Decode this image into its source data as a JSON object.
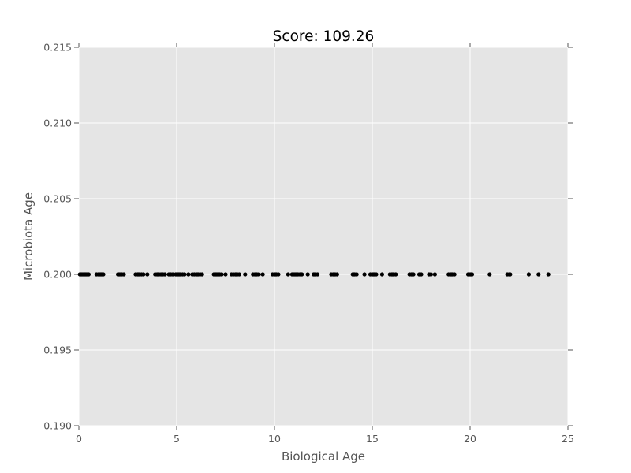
{
  "chart_data": {
    "type": "scatter",
    "title": "Score: 109.26",
    "xlabel": "Biological Age",
    "ylabel": "Microbiota Age",
    "xlim": [
      0,
      25
    ],
    "ylim": [
      0.19,
      0.215
    ],
    "xticks": [
      0,
      5,
      10,
      15,
      20,
      25
    ],
    "xtick_labels": [
      "0",
      "5",
      "10",
      "15",
      "20",
      "25"
    ],
    "yticks": [
      0.19,
      0.195,
      0.2,
      0.205,
      0.21,
      0.215
    ],
    "ytick_labels": [
      "0.190",
      "0.195",
      "0.200",
      "0.205",
      "0.210",
      "0.215"
    ],
    "grid": true,
    "style": {
      "plot_background": "#e5e5e5",
      "grid_color": "#ffffff",
      "marker_color": "#000000",
      "text_color": "#555555",
      "title_color": "#000000"
    },
    "series": [
      {
        "x": [
          0.05,
          0.1,
          0.15,
          0.2,
          0.25,
          0.3,
          0.35,
          0.4,
          0.45,
          0.5,
          0.9,
          1.0,
          1.05,
          1.1,
          1.15,
          1.2,
          1.25,
          2.0,
          2.05,
          2.1,
          2.2,
          2.3,
          2.9,
          3.0,
          3.05,
          3.1,
          3.2,
          3.3,
          3.5,
          3.9,
          4.0,
          4.05,
          4.1,
          4.2,
          4.3,
          4.4,
          4.6,
          4.7,
          4.8,
          4.95,
          5.0,
          5.05,
          5.1,
          5.15,
          5.2,
          5.3,
          5.4,
          5.6,
          5.8,
          5.9,
          6.0,
          6.05,
          6.1,
          6.2,
          6.3,
          6.9,
          7.0,
          7.05,
          7.1,
          7.15,
          7.2,
          7.3,
          7.5,
          7.8,
          7.9,
          8.0,
          8.05,
          8.1,
          8.2,
          8.5,
          8.9,
          9.0,
          9.05,
          9.1,
          9.2,
          9.4,
          9.9,
          10.0,
          10.05,
          10.1,
          10.2,
          10.7,
          10.9,
          11.0,
          11.05,
          11.1,
          11.15,
          11.2,
          11.3,
          11.4,
          11.7,
          12.0,
          12.05,
          12.1,
          12.2,
          12.9,
          13.0,
          13.05,
          13.1,
          13.2,
          14.0,
          14.05,
          14.1,
          14.2,
          14.6,
          14.9,
          15.0,
          15.05,
          15.1,
          15.2,
          15.5,
          15.9,
          16.0,
          16.05,
          16.1,
          16.2,
          16.9,
          17.0,
          17.05,
          17.1,
          17.4,
          17.5,
          17.9,
          18.0,
          18.2,
          18.9,
          19.0,
          19.05,
          19.1,
          19.2,
          19.9,
          20.0,
          20.05,
          20.1,
          21.0,
          21.9,
          22.0,
          22.05,
          23.0,
          23.5,
          24.0
        ],
        "y": [
          0.2,
          0.2,
          0.2,
          0.2,
          0.2,
          0.2,
          0.2,
          0.2,
          0.2,
          0.2,
          0.2,
          0.2,
          0.2,
          0.2,
          0.2,
          0.2,
          0.2,
          0.2,
          0.2,
          0.2,
          0.2,
          0.2,
          0.2,
          0.2,
          0.2,
          0.2,
          0.2,
          0.2,
          0.2,
          0.2,
          0.2,
          0.2,
          0.2,
          0.2,
          0.2,
          0.2,
          0.2,
          0.2,
          0.2,
          0.2,
          0.2,
          0.2,
          0.2,
          0.2,
          0.2,
          0.2,
          0.2,
          0.2,
          0.2,
          0.2,
          0.2,
          0.2,
          0.2,
          0.2,
          0.2,
          0.2,
          0.2,
          0.2,
          0.2,
          0.2,
          0.2,
          0.2,
          0.2,
          0.2,
          0.2,
          0.2,
          0.2,
          0.2,
          0.2,
          0.2,
          0.2,
          0.2,
          0.2,
          0.2,
          0.2,
          0.2,
          0.2,
          0.2,
          0.2,
          0.2,
          0.2,
          0.2,
          0.2,
          0.2,
          0.2,
          0.2,
          0.2,
          0.2,
          0.2,
          0.2,
          0.2,
          0.2,
          0.2,
          0.2,
          0.2,
          0.2,
          0.2,
          0.2,
          0.2,
          0.2,
          0.2,
          0.2,
          0.2,
          0.2,
          0.2,
          0.2,
          0.2,
          0.2,
          0.2,
          0.2,
          0.2,
          0.2,
          0.2,
          0.2,
          0.2,
          0.2,
          0.2,
          0.2,
          0.2,
          0.2,
          0.2,
          0.2,
          0.2,
          0.2,
          0.2,
          0.2,
          0.2,
          0.2,
          0.2,
          0.2,
          0.2,
          0.2,
          0.2,
          0.2,
          0.2,
          0.2,
          0.2,
          0.2,
          0.2,
          0.2,
          0.2
        ]
      }
    ]
  }
}
